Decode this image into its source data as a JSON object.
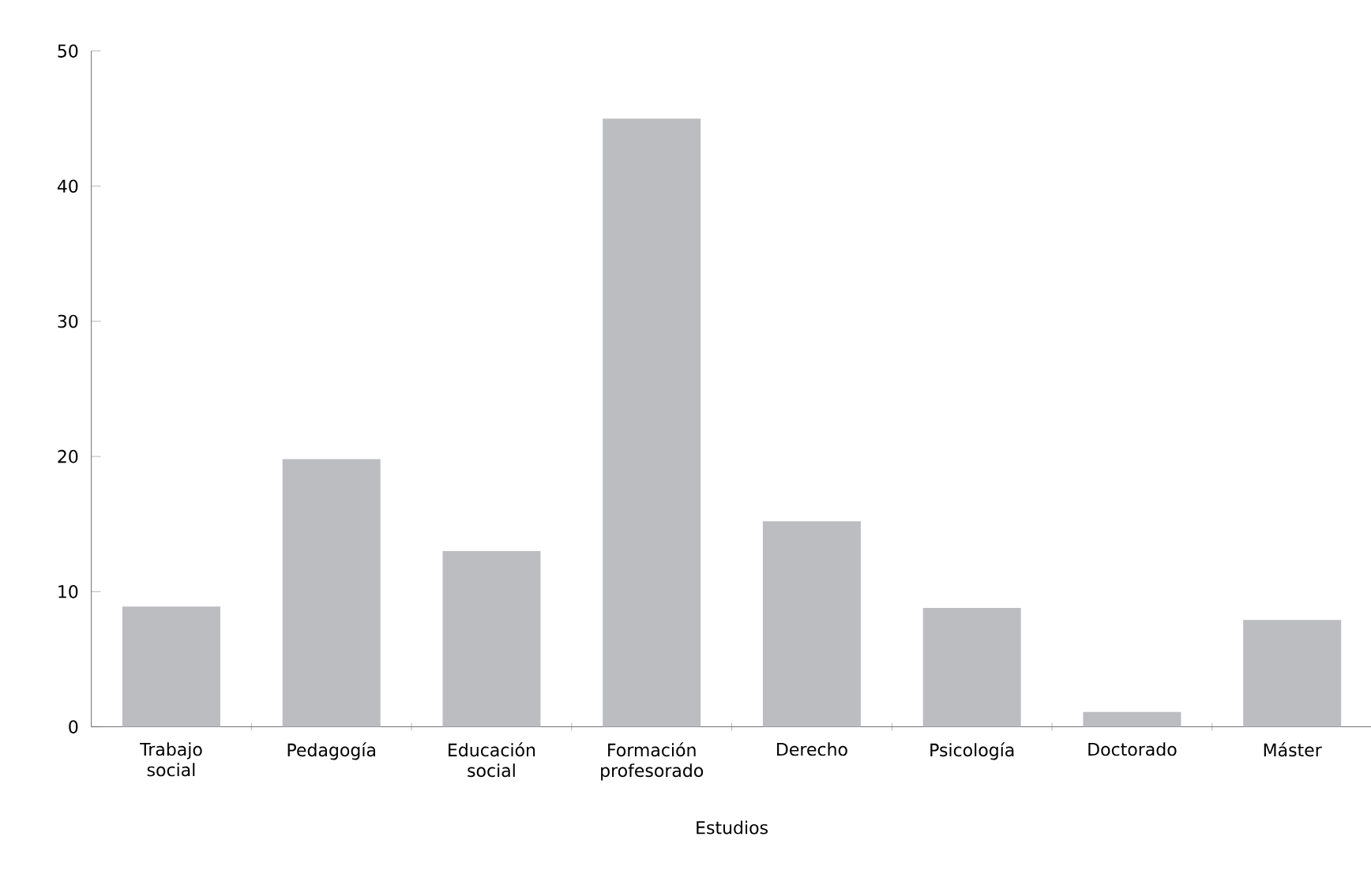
{
  "chart_data": {
    "type": "bar",
    "xlabel": "Estudios",
    "categories": [
      "Trabajo social",
      "Pedagogía",
      "Educación social",
      "Formación profesorado",
      "Derecho",
      "Psicología",
      "Doctorado",
      "Máster"
    ],
    "values": [
      8.9,
      19.8,
      13.0,
      45.0,
      15.2,
      8.8,
      1.1,
      7.9
    ],
    "color": "#bcbdc1",
    "ylim": [
      0,
      50
    ],
    "yticks": [
      0,
      10,
      20,
      30,
      40,
      50
    ]
  }
}
